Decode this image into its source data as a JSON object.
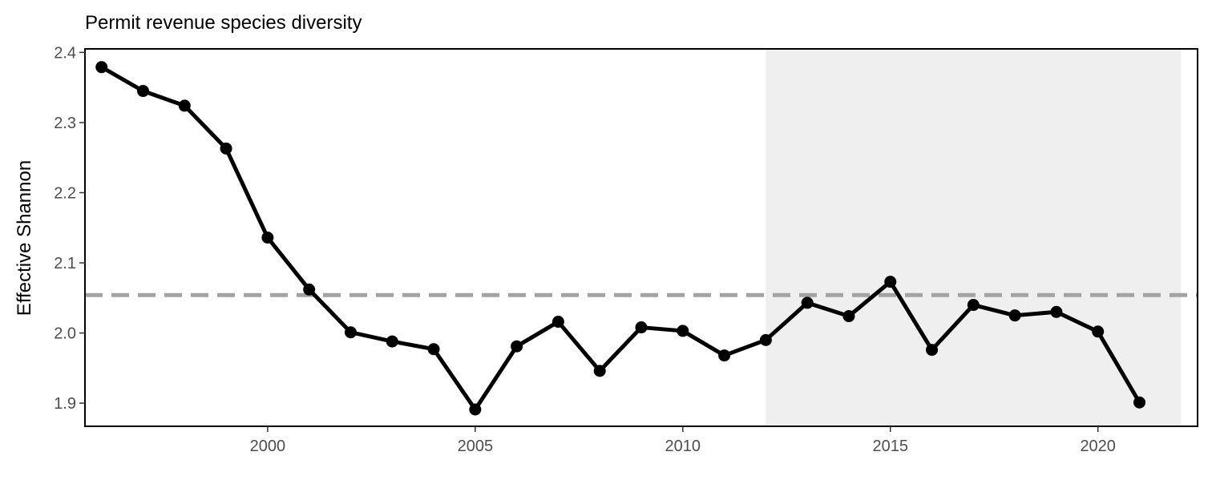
{
  "chart_data": {
    "type": "line",
    "title": "Permit revenue species diversity",
    "xlabel": "",
    "ylabel": "Effective Shannon",
    "xlim": [
      1995.6,
      2022.4
    ],
    "ylim": [
      1.867,
      2.405
    ],
    "x_ticks": [
      2000,
      2005,
      2010,
      2015,
      2020
    ],
    "x_tick_labels": [
      "2000",
      "2005",
      "2010",
      "2015",
      "2020"
    ],
    "y_ticks": [
      1.9,
      2.0,
      2.1,
      2.2,
      2.3,
      2.4
    ],
    "y_tick_labels": [
      "1.9",
      "2.0",
      "2.1",
      "2.2",
      "2.3",
      "2.4"
    ],
    "grid": false,
    "shaded_region": {
      "x_start": 2012,
      "x_end": 2022,
      "color": "#efefef"
    },
    "reference_line": {
      "y": 2.054,
      "style": "dashed",
      "color": "#a3a3a3"
    },
    "series": [
      {
        "color": "#000000",
        "x": [
          1996,
          1997,
          1998,
          1999,
          2000,
          2001,
          2002,
          2003,
          2004,
          2005,
          2006,
          2007,
          2008,
          2009,
          2010,
          2011,
          2012,
          2013,
          2014,
          2015,
          2016,
          2017,
          2018,
          2019,
          2020,
          2021
        ],
        "y": [
          2.379,
          2.345,
          2.324,
          2.263,
          2.136,
          2.062,
          2.001,
          1.988,
          1.977,
          1.891,
          1.981,
          2.016,
          1.946,
          2.008,
          2.003,
          1.968,
          1.99,
          2.043,
          2.024,
          2.073,
          1.976,
          2.04,
          2.025,
          2.03,
          2.002,
          1.901
        ]
      }
    ]
  }
}
